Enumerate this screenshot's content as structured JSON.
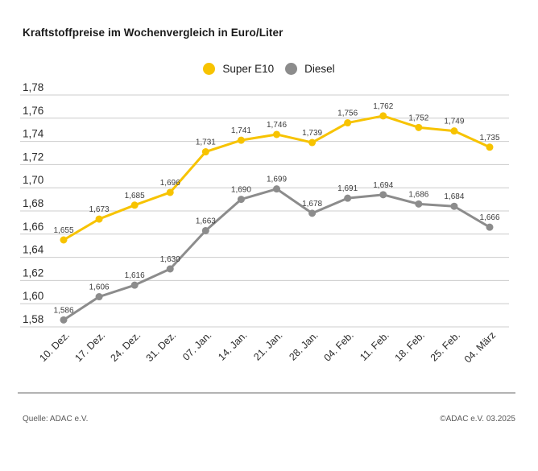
{
  "title": "Kraftstoffpreise im Wochenvergleich in Euro/Liter",
  "footer": {
    "source": "Quelle: ADAC e.V.",
    "copyright": "©ADAC e.V. 03.2025"
  },
  "colors": {
    "super_e10": "#f7c300",
    "diesel": "#8c8c8c",
    "gridline": "#cccccc",
    "axis_text": "#2b2b2b",
    "value_label": "#3c3c3c"
  },
  "chart_data": {
    "type": "line",
    "title": "Kraftstoffpreise im Wochenvergleich in Euro/Liter",
    "ylabel": "Euro/Liter",
    "categories": [
      "10. Dez.",
      "17. Dez.",
      "24. Dez.",
      "31. Dez.",
      "07. Jan.",
      "14. Jan.",
      "21. Jan.",
      "28. Jan.",
      "04. Feb.",
      "11. Feb.",
      "18. Feb.",
      "25. Feb.",
      "04. März"
    ],
    "series": [
      {
        "name": "Super E10",
        "color": "#f7c300",
        "values": [
          1.655,
          1.673,
          1.685,
          1.696,
          1.731,
          1.741,
          1.746,
          1.739,
          1.756,
          1.762,
          1.752,
          1.749,
          1.735
        ]
      },
      {
        "name": "Diesel",
        "color": "#8c8c8c",
        "values": [
          1.586,
          1.606,
          1.616,
          1.63,
          1.663,
          1.69,
          1.699,
          1.678,
          1.691,
          1.694,
          1.686,
          1.684,
          1.666
        ]
      }
    ],
    "ylim": [
      1.58,
      1.78
    ],
    "ytick_step": 0.02,
    "grid": true,
    "legend_position": "top-center",
    "decimal_separator": ",",
    "point_labels_shown": true
  }
}
